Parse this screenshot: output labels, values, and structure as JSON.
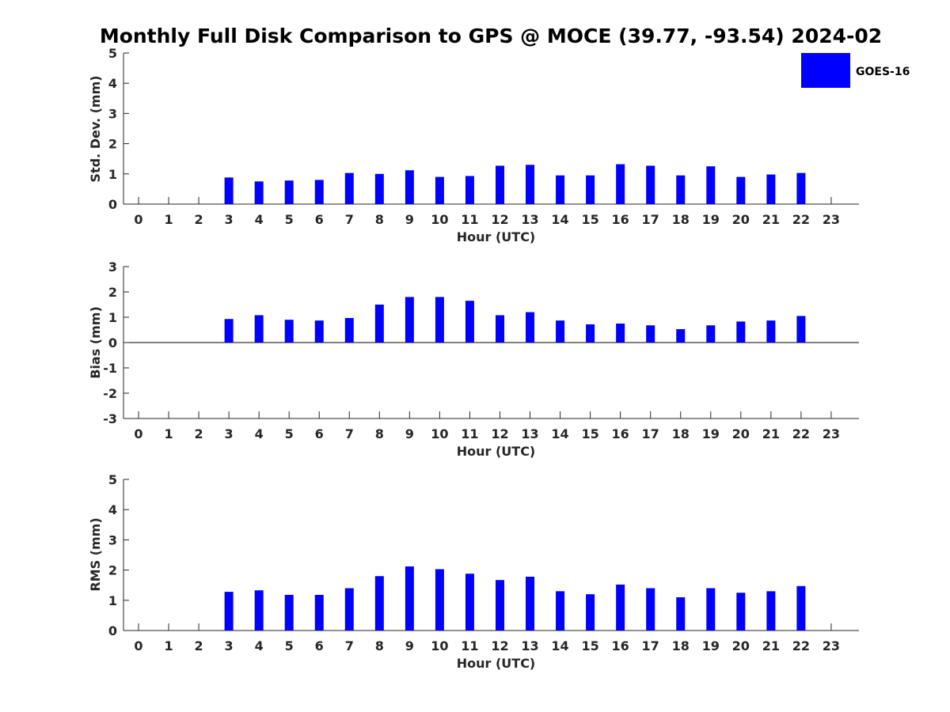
{
  "title": "Monthly Full Disk Comparison to GPS @ MOCE (39.77, -93.54) 2024-02",
  "legend": {
    "label": "GOES-16",
    "color": "#0000ff",
    "placement": "top-right"
  },
  "chart_data": [
    {
      "type": "bar",
      "ylabel": "Std. Dev. (mm)",
      "xlabel": "Hour (UTC)",
      "ylim": [
        0,
        5
      ],
      "yticks": [
        0,
        1,
        2,
        3,
        4,
        5
      ],
      "categories": [
        0,
        1,
        2,
        3,
        4,
        5,
        6,
        7,
        8,
        9,
        10,
        11,
        12,
        13,
        14,
        15,
        16,
        17,
        18,
        19,
        20,
        21,
        22,
        23
      ],
      "series": [
        {
          "values": [
            null,
            null,
            null,
            0.88,
            0.75,
            0.78,
            0.8,
            1.03,
            1.0,
            1.12,
            0.9,
            0.93,
            1.27,
            1.3,
            0.95,
            0.95,
            1.32,
            1.27,
            0.95,
            1.25,
            0.9,
            0.98,
            1.03,
            null
          ]
        }
      ]
    },
    {
      "type": "bar",
      "ylabel": "Bias (mm)",
      "xlabel": "Hour (UTC)",
      "ylim": [
        -3,
        3
      ],
      "yticks": [
        -3,
        -2,
        -1,
        0,
        1,
        2,
        3
      ],
      "categories": [
        0,
        1,
        2,
        3,
        4,
        5,
        6,
        7,
        8,
        9,
        10,
        11,
        12,
        13,
        14,
        15,
        16,
        17,
        18,
        19,
        20,
        21,
        22,
        23
      ],
      "series": [
        {
          "values": [
            null,
            null,
            null,
            0.93,
            1.08,
            0.9,
            0.87,
            0.97,
            1.5,
            1.8,
            1.8,
            1.65,
            1.08,
            1.2,
            0.87,
            0.72,
            0.75,
            0.68,
            0.53,
            0.68,
            0.83,
            0.87,
            1.05,
            null
          ]
        }
      ]
    },
    {
      "type": "bar",
      "ylabel": "RMS (mm)",
      "xlabel": "Hour (UTC)",
      "ylim": [
        0,
        5
      ],
      "yticks": [
        0,
        1,
        2,
        3,
        4,
        5
      ],
      "categories": [
        0,
        1,
        2,
        3,
        4,
        5,
        6,
        7,
        8,
        9,
        10,
        11,
        12,
        13,
        14,
        15,
        16,
        17,
        18,
        19,
        20,
        21,
        22,
        23
      ],
      "series": [
        {
          "values": [
            null,
            null,
            null,
            1.28,
            1.33,
            1.18,
            1.18,
            1.4,
            1.8,
            2.12,
            2.03,
            1.88,
            1.67,
            1.78,
            1.3,
            1.2,
            1.52,
            1.4,
            1.1,
            1.4,
            1.25,
            1.3,
            1.47,
            null
          ]
        }
      ]
    }
  ]
}
